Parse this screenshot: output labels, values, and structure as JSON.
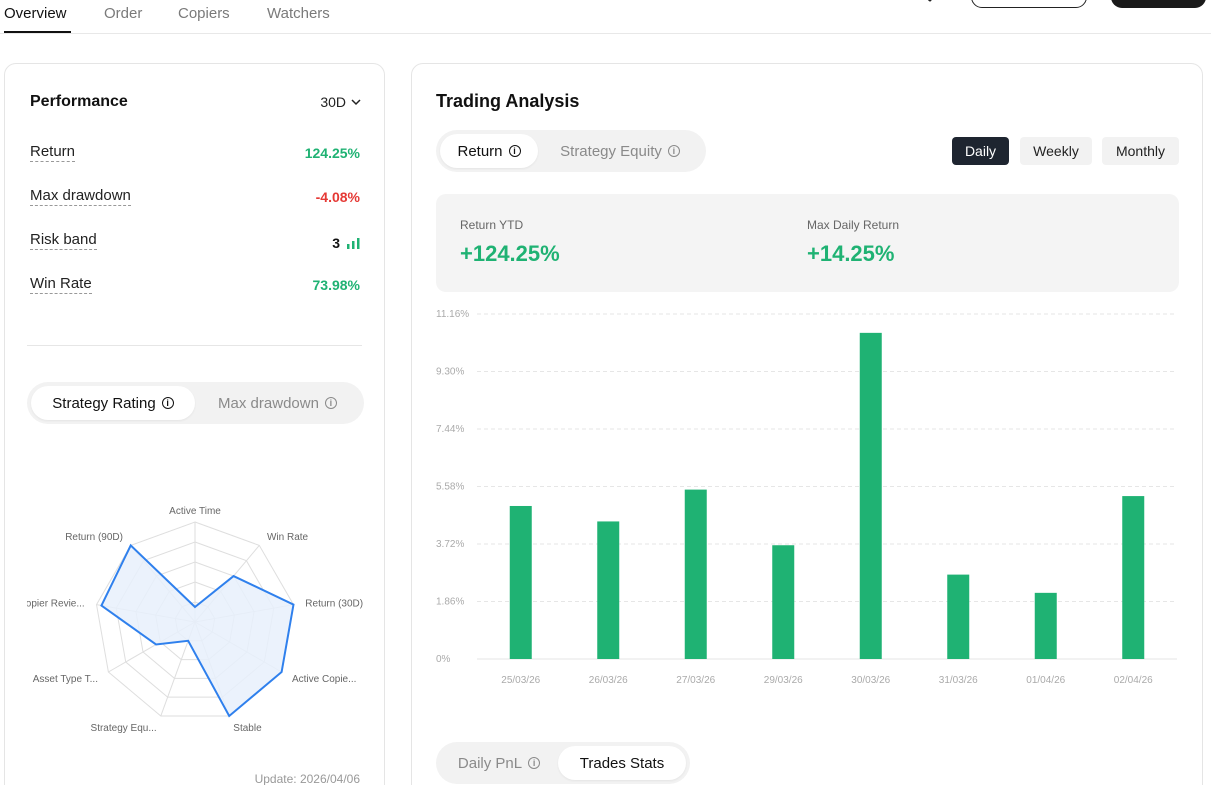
{
  "nav": {
    "tabs": [
      {
        "label": "Overview",
        "active": true
      },
      {
        "label": "Order",
        "active": false
      },
      {
        "label": "Copiers",
        "active": false
      },
      {
        "label": "Watchers",
        "active": false
      }
    ]
  },
  "performance": {
    "title": "Performance",
    "period": "30D",
    "metrics": [
      {
        "label": "Return",
        "value": "124.25%",
        "color": "#1fb273"
      },
      {
        "label": "Max drawdown",
        "value": "-4.08%",
        "color": "#e53935"
      },
      {
        "label": "Risk band",
        "value": "3",
        "color": "#111111"
      },
      {
        "label": "Win Rate",
        "value": "73.98%",
        "color": "#1fb273"
      }
    ],
    "rating_tabs": [
      {
        "label": "Strategy Rating",
        "active": true
      },
      {
        "label": "Max drawdown",
        "active": false
      }
    ],
    "radar": {
      "axes": [
        "Active Time",
        "Win Rate",
        "Return (30D)",
        "Active Copie...",
        "Stable",
        "Strategy Equ...",
        "Asset Type T...",
        "Copier Revie...",
        "Return (90D)"
      ],
      "values": [
        0.15,
        0.6,
        1.0,
        1.0,
        1.0,
        0.2,
        0.45,
        0.95,
        1.0
      ],
      "fill_color": "#e8f0fc",
      "stroke_color": "#2f80ed"
    },
    "update": "Update: 2026/04/06"
  },
  "analysis": {
    "title": "Trading Analysis",
    "view_tabs": [
      {
        "label": "Return",
        "active": true
      },
      {
        "label": "Strategy Equity",
        "active": false
      }
    ],
    "periods": [
      {
        "label": "Daily",
        "active": true
      },
      {
        "label": "Weekly",
        "active": false
      },
      {
        "label": "Monthly",
        "active": false
      }
    ],
    "stats": [
      {
        "label": "Return YTD",
        "value": "+124.25%"
      },
      {
        "label": "Max Daily Return",
        "value": "+14.25%"
      }
    ],
    "bottom_tabs": [
      {
        "label": "Daily PnL",
        "active": false
      },
      {
        "label": "Trades Stats",
        "active": true
      }
    ]
  },
  "chart_data": {
    "type": "bar",
    "categories": [
      "25/03/26",
      "26/03/26",
      "27/03/26",
      "29/03/26",
      "30/03/26",
      "31/03/26",
      "01/04/26",
      "02/04/26"
    ],
    "values": [
      4.95,
      4.45,
      5.48,
      3.68,
      10.55,
      2.73,
      2.14,
      5.27
    ],
    "yticks": [
      "0%",
      "1.86%",
      "3.72%",
      "5.58%",
      "7.44%",
      "9.30%",
      "11.16%"
    ],
    "ylim": [
      0,
      11.16
    ],
    "bar_color": "#1fb273",
    "grid": true
  }
}
